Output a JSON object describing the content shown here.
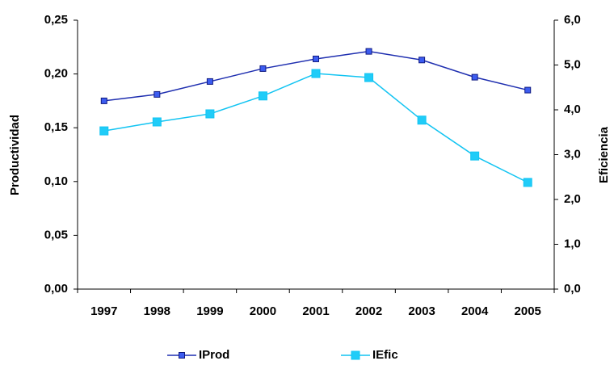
{
  "chart_data": {
    "type": "line",
    "categories": [
      "1997",
      "1998",
      "1999",
      "2000",
      "2001",
      "2002",
      "2003",
      "2004",
      "2005"
    ],
    "ylabel": "Productividad",
    "y2label": "Eficiencia",
    "ylim": [
      0,
      0.25
    ],
    "yticks": [
      {
        "value": 0,
        "label": "0,00"
      },
      {
        "value": 0.05,
        "label": "0,05"
      },
      {
        "value": 0.1,
        "label": "0,10"
      },
      {
        "value": 0.15,
        "label": "0,15"
      },
      {
        "value": 0.2,
        "label": "0,20"
      },
      {
        "value": 0.25,
        "label": "0,25"
      }
    ],
    "y2lim": [
      0,
      6
    ],
    "y2ticks": [
      {
        "value": 0,
        "label": "0,0"
      },
      {
        "value": 1,
        "label": "1,0"
      },
      {
        "value": 2,
        "label": "2,0"
      },
      {
        "value": 3,
        "label": "3,0"
      },
      {
        "value": 4,
        "label": "4,0"
      },
      {
        "value": 5,
        "label": "5,0"
      },
      {
        "value": 6,
        "label": "6,0"
      }
    ],
    "grid": false,
    "legend": "bottom",
    "series": [
      {
        "name": "IProd",
        "color": "#1f2fb0",
        "marker_color": "#3c5cf0",
        "values": [
          0.175,
          0.181,
          0.193,
          0.205,
          0.214,
          0.221,
          0.213,
          0.197,
          0.185
        ]
      },
      {
        "name": "IEfic",
        "color": "#12c4f2",
        "marker_color": "#20ccf8",
        "axis": "y2",
        "values": [
          3.53,
          3.73,
          3.91,
          4.31,
          4.81,
          4.72,
          3.77,
          2.97,
          2.38
        ]
      }
    ]
  }
}
